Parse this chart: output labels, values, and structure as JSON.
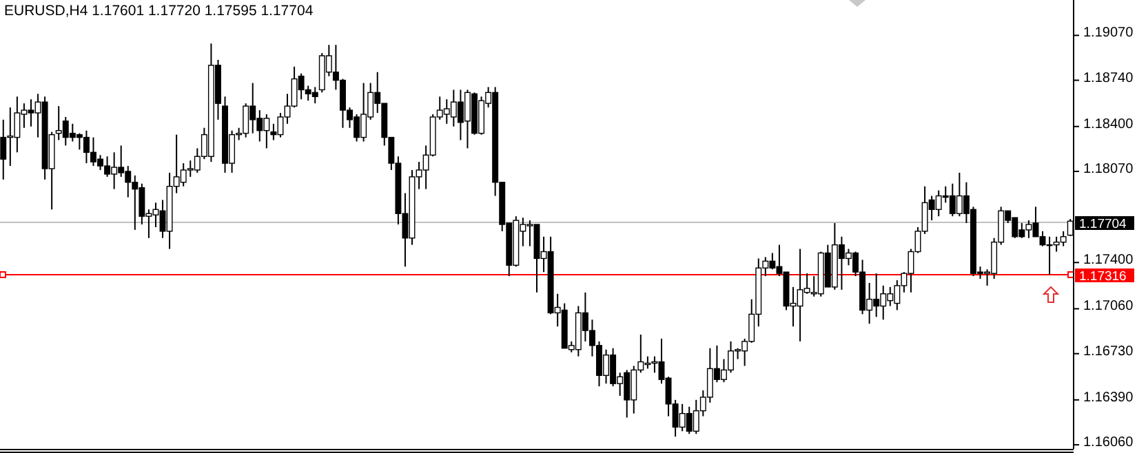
{
  "chart_data": {
    "type": "candlestick",
    "title": "EURUSD,H4  1.17601 1.17720 1.17595 1.17704",
    "categories": [
      null,
      null,
      null,
      null,
      null,
      null,
      null,
      null,
      null,
      null,
      null,
      null,
      null,
      null,
      null,
      null,
      null,
      null,
      null,
      null,
      null,
      null,
      null,
      null,
      null,
      null,
      null,
      null,
      null,
      null,
      null,
      null,
      null,
      null,
      null,
      null,
      null,
      null,
      null,
      null,
      null,
      null,
      null,
      null,
      null,
      null,
      null,
      null,
      null,
      null,
      null,
      null,
      null,
      null,
      null,
      null,
      null,
      null,
      null,
      null,
      null,
      null,
      null,
      null,
      null,
      null,
      null,
      null,
      null,
      null,
      null,
      null,
      null,
      null,
      null,
      null,
      null,
      null,
      null,
      null,
      null,
      null,
      null,
      null,
      null,
      null,
      null,
      null,
      null,
      null,
      null,
      null,
      null,
      null,
      null,
      null,
      null,
      null,
      null,
      null,
      null,
      null,
      null,
      null,
      null,
      null,
      null,
      null,
      null,
      null,
      null,
      null,
      null,
      null,
      null,
      null,
      null,
      null,
      null,
      null,
      null,
      null,
      null,
      null,
      null,
      null,
      null,
      null,
      null,
      null,
      null,
      null,
      null,
      null,
      null,
      null,
      null,
      null,
      null,
      null,
      null,
      null,
      null,
      null,
      null,
      null,
      null,
      null,
      null,
      null,
      null,
      null,
      null,
      null,
      null
    ],
    "ohlc": [
      [
        1.1832,
        1.1845,
        1.1801,
        1.1816
      ],
      [
        1.1832,
        1.1854,
        1.1811,
        1.1833
      ],
      [
        1.1832,
        1.1862,
        1.1821,
        1.185
      ],
      [
        1.1849,
        1.1857,
        1.1839,
        1.1852
      ],
      [
        1.1852,
        1.186,
        1.184,
        1.185
      ],
      [
        1.185,
        1.1864,
        1.1832,
        1.1858
      ],
      [
        1.1858,
        1.1862,
        1.1801,
        1.1809
      ],
      [
        1.1809,
        1.1836,
        1.1779,
        1.1834
      ],
      [
        1.1835,
        1.1855,
        1.183,
        1.1837
      ],
      [
        1.1844,
        1.1847,
        1.1826,
        1.1832
      ],
      [
        1.1835,
        1.1842,
        1.1829,
        1.1832
      ],
      [
        1.1834,
        1.1835,
        1.1823,
        1.1832
      ],
      [
        1.1832,
        1.1837,
        1.1813,
        1.1821
      ],
      [
        1.1821,
        1.1832,
        1.1811,
        1.1814
      ],
      [
        1.1816,
        1.1819,
        1.1808,
        1.1811
      ],
      [
        1.1811,
        1.1818,
        1.1803,
        1.1805
      ],
      [
        1.1805,
        1.1821,
        1.1794,
        1.181
      ],
      [
        1.181,
        1.1826,
        1.1803,
        1.1806
      ],
      [
        1.1807,
        1.1811,
        1.1788,
        1.1799
      ],
      [
        1.1799,
        1.1804,
        1.1764,
        1.1794
      ],
      [
        1.1795,
        1.1798,
        1.1768,
        1.1774
      ],
      [
        1.1774,
        1.1779,
        1.1758,
        1.1776
      ],
      [
        1.1775,
        1.1784,
        1.1766,
        1.1779
      ],
      [
        1.1778,
        1.1786,
        1.1758,
        1.1763
      ],
      [
        1.1763,
        1.1806,
        1.175,
        1.1796
      ],
      [
        1.1796,
        1.1834,
        1.1791,
        1.1803
      ],
      [
        1.1799,
        1.1813,
        1.1796,
        1.1808
      ],
      [
        1.1808,
        1.1815,
        1.1803,
        1.1809
      ],
      [
        1.1808,
        1.1824,
        1.1806,
        1.1818
      ],
      [
        1.1818,
        1.1839,
        1.1816,
        1.1834
      ],
      [
        1.1818,
        1.1901,
        1.1814,
        1.1885
      ],
      [
        1.1885,
        1.1889,
        1.1845,
        1.1857
      ],
      [
        1.1855,
        1.1862,
        1.1806,
        1.1813
      ],
      [
        1.1813,
        1.1837,
        1.1806,
        1.1834
      ],
      [
        1.1834,
        1.1839,
        1.183,
        1.1835
      ],
      [
        1.1835,
        1.1857,
        1.1832,
        1.1855
      ],
      [
        1.1855,
        1.1872,
        1.1835,
        1.1845
      ],
      [
        1.1846,
        1.1852,
        1.1829,
        1.1837
      ],
      [
        1.1837,
        1.1849,
        1.1824,
        1.1846
      ],
      [
        1.1836,
        1.1842,
        1.183,
        1.1834
      ],
      [
        1.1834,
        1.185,
        1.1832,
        1.1847
      ],
      [
        1.1847,
        1.1864,
        1.1842,
        1.1855
      ],
      [
        1.1855,
        1.1884,
        1.1854,
        1.1875
      ],
      [
        1.1877,
        1.1879,
        1.186,
        1.1867
      ],
      [
        1.1867,
        1.187,
        1.1859,
        1.1864
      ],
      [
        1.1865,
        1.1869,
        1.1857,
        1.1862
      ],
      [
        1.1867,
        1.1894,
        1.1865,
        1.1892
      ],
      [
        1.188,
        1.19,
        1.1877,
        1.1892
      ],
      [
        1.188,
        1.19,
        1.1867,
        1.1874
      ],
      [
        1.1874,
        1.1875,
        1.1839,
        1.1852
      ],
      [
        1.1852,
        1.1854,
        1.1839,
        1.1845
      ],
      [
        1.1847,
        1.1849,
        1.1829,
        1.1832
      ],
      [
        1.1832,
        1.1872,
        1.1829,
        1.1849
      ],
      [
        1.1847,
        1.1872,
        1.1845,
        1.1865
      ],
      [
        1.1865,
        1.188,
        1.185,
        1.1857
      ],
      [
        1.1857,
        1.1857,
        1.1826,
        1.1832
      ],
      [
        1.1832,
        1.1832,
        1.1808,
        1.1813
      ],
      [
        1.1813,
        1.1818,
        1.1768,
        1.1776
      ],
      [
        1.1776,
        1.1791,
        1.1737,
        1.1758
      ],
      [
        1.1758,
        1.1808,
        1.1753,
        1.1803
      ],
      [
        1.1803,
        1.1814,
        1.1794,
        1.1808
      ],
      [
        1.1808,
        1.1826,
        1.1794,
        1.1819
      ],
      [
        1.1819,
        1.1849,
        1.1818,
        1.1847
      ],
      [
        1.1847,
        1.1862,
        1.1845,
        1.1852
      ],
      [
        1.1849,
        1.186,
        1.1842,
        1.1853
      ],
      [
        1.1847,
        1.1867,
        1.184,
        1.1858
      ],
      [
        1.1858,
        1.1867,
        1.183,
        1.1843
      ],
      [
        1.1844,
        1.1867,
        1.1824,
        1.1865
      ],
      [
        1.1864,
        1.1865,
        1.1834,
        1.1835
      ],
      [
        1.1835,
        1.1862,
        1.1834,
        1.1859
      ],
      [
        1.1857,
        1.1869,
        1.1854,
        1.1865
      ],
      [
        1.1865,
        1.1869,
        1.1789,
        1.1799
      ],
      [
        1.1799,
        1.1799,
        1.1763,
        1.1768
      ],
      [
        1.1769,
        1.1769,
        1.173,
        1.1738
      ],
      [
        1.1738,
        1.1774,
        1.1737,
        1.1771
      ],
      [
        1.1763,
        1.1773,
        1.1752,
        1.1768
      ],
      [
        1.1767,
        1.1771,
        1.1752,
        1.1768
      ],
      [
        1.1768,
        1.1768,
        1.1718,
        1.1743
      ],
      [
        1.1743,
        1.1759,
        1.1733,
        1.1748
      ],
      [
        1.1748,
        1.1759,
        1.1702,
        1.1703
      ],
      [
        1.1703,
        1.1717,
        1.1693,
        1.1707
      ],
      [
        1.1705,
        1.171,
        1.1677,
        1.1677
      ],
      [
        1.1676,
        1.1682,
        1.1674,
        1.1679
      ],
      [
        1.1676,
        1.1708,
        1.1671,
        1.1703
      ],
      [
        1.1703,
        1.1718,
        1.1682,
        1.169
      ],
      [
        1.169,
        1.1698,
        1.1671,
        1.1679
      ],
      [
        1.1679,
        1.1682,
        1.1649,
        1.1657
      ],
      [
        1.1657,
        1.1676,
        1.1651,
        1.1672
      ],
      [
        1.1672,
        1.1677,
        1.1649,
        1.1651
      ],
      [
        1.1651,
        1.1659,
        1.1642,
        1.1656
      ],
      [
        1.1659,
        1.1661,
        1.1626,
        1.1639
      ],
      [
        1.1639,
        1.1664,
        1.1629,
        1.1661
      ],
      [
        1.1661,
        1.1687,
        1.1659,
        1.1667
      ],
      [
        1.1665,
        1.1671,
        1.1662,
        1.1666
      ],
      [
        1.1666,
        1.1671,
        1.1659,
        1.1667
      ],
      [
        1.1667,
        1.1684,
        1.1651,
        1.1654
      ],
      [
        1.1655,
        1.1656,
        1.1627,
        1.1636
      ],
      [
        1.1636,
        1.1639,
        1.1612,
        1.1619
      ],
      [
        1.1619,
        1.1636,
        1.1616,
        1.1629
      ],
      [
        1.1629,
        1.1634,
        1.1614,
        1.1616
      ],
      [
        1.1616,
        1.1639,
        1.1614,
        1.1631
      ],
      [
        1.1631,
        1.1646,
        1.1627,
        1.1641
      ],
      [
        1.1641,
        1.1677,
        1.1637,
        1.1662
      ],
      [
        1.1662,
        1.1679,
        1.1652,
        1.1654
      ],
      [
        1.1654,
        1.1669,
        1.1652,
        1.1661
      ],
      [
        1.1661,
        1.1682,
        1.1659,
        1.1675
      ],
      [
        1.1675,
        1.1677,
        1.1669,
        1.1676
      ],
      [
        1.1675,
        1.1684,
        1.1664,
        1.1682
      ],
      [
        1.1682,
        1.1713,
        1.1681,
        1.1702
      ],
      [
        1.1702,
        1.1743,
        1.1693,
        1.1736
      ],
      [
        1.1736,
        1.1744,
        1.173,
        1.1741
      ],
      [
        1.1741,
        1.1747,
        1.1735,
        1.1736
      ],
      [
        1.1737,
        1.1753,
        1.173,
        1.1732
      ],
      [
        1.1733,
        1.1733,
        1.1705,
        1.1708
      ],
      [
        1.1708,
        1.1722,
        1.1693,
        1.171
      ],
      [
        1.1708,
        1.175,
        1.1682,
        1.172
      ],
      [
        1.1718,
        1.1732,
        1.1717,
        1.1721
      ],
      [
        1.1717,
        1.173,
        1.1715,
        1.1718
      ],
      [
        1.1717,
        1.1748,
        1.1715,
        1.1747
      ],
      [
        1.1747,
        1.1753,
        1.1722,
        1.1722
      ],
      [
        1.1722,
        1.1769,
        1.172,
        1.1753
      ],
      [
        1.1753,
        1.1759,
        1.172,
        1.1743
      ],
      [
        1.1743,
        1.175,
        1.1738,
        1.1747
      ],
      [
        1.1747,
        1.1748,
        1.173,
        1.1733
      ],
      [
        1.1733,
        1.1742,
        1.1702,
        1.1705
      ],
      [
        1.1705,
        1.1725,
        1.1695,
        1.1713
      ],
      [
        1.1713,
        1.1732,
        1.17,
        1.1708
      ],
      [
        1.1708,
        1.1723,
        1.1698,
        1.1717
      ],
      [
        1.1712,
        1.1722,
        1.1708,
        1.1717
      ],
      [
        1.171,
        1.1727,
        1.1705,
        1.1723
      ],
      [
        1.1723,
        1.1733,
        1.1718,
        1.1732
      ],
      [
        1.1732,
        1.175,
        1.1718,
        1.1748
      ],
      [
        1.1748,
        1.1766,
        1.1747,
        1.1763
      ],
      [
        1.1763,
        1.1796,
        1.1761,
        1.1784
      ],
      [
        1.1786,
        1.1789,
        1.1771,
        1.1779
      ],
      [
        1.1779,
        1.1793,
        1.1774,
        1.1789
      ],
      [
        1.1789,
        1.1796,
        1.1784,
        1.1788
      ],
      [
        1.1789,
        1.1798,
        1.1774,
        1.1776
      ],
      [
        1.1776,
        1.1806,
        1.1774,
        1.1789
      ],
      [
        1.1789,
        1.1799,
        1.1769,
        1.1776
      ],
      [
        1.1779,
        1.1781,
        1.173,
        1.1732
      ],
      [
        1.1733,
        1.1737,
        1.1728,
        1.1732
      ],
      [
        1.1732,
        1.1735,
        1.1723,
        1.1733
      ],
      [
        1.1732,
        1.1758,
        1.1728,
        1.1755
      ],
      [
        1.1755,
        1.1781,
        1.1753,
        1.1778
      ],
      [
        1.1778,
        1.1778,
        1.1769,
        1.1771
      ],
      [
        1.1773,
        1.1773,
        1.1758,
        1.1759
      ],
      [
        1.1764,
        1.1769,
        1.1758,
        1.1759
      ],
      [
        1.1764,
        1.1771,
        1.1758,
        1.1768
      ],
      [
        1.1769,
        1.1781,
        1.1759,
        1.1759
      ],
      [
        1.1759,
        1.1763,
        1.1752,
        1.1753
      ],
      [
        1.1753,
        1.1759,
        1.1731,
        1.1753
      ],
      [
        1.1753,
        1.1759,
        1.1748,
        1.1755
      ],
      [
        1.1755,
        1.1763,
        1.1752,
        1.1759
      ],
      [
        1.17601,
        1.1772,
        1.17595,
        1.17704
      ]
    ],
    "ylim": [
      1.1603,
      1.1933
    ],
    "yticks": [
      {
        "value": 1.1907,
        "label": "1.19070"
      },
      {
        "value": 1.1874,
        "label": "1.18740"
      },
      {
        "value": 1.184,
        "label": "1.18400"
      },
      {
        "value": 1.1807,
        "label": "1.18070"
      },
      {
        "value": 1.174,
        "label": "1.17400"
      },
      {
        "value": 1.1706,
        "label": "1.17060"
      },
      {
        "value": 1.1673,
        "label": "1.16730"
      },
      {
        "value": 1.1639,
        "label": "1.16390"
      },
      {
        "value": 1.1606,
        "label": "1.16060"
      }
    ],
    "ref_lines": [
      {
        "axis": "y",
        "value": 1.17704,
        "label": "1.17704",
        "color": "#c0c0c0"
      },
      {
        "axis": "y",
        "value": 1.17316,
        "label": "1.17316",
        "color": "#ff0000"
      }
    ],
    "tick_labels": "y",
    "grid": false
  }
}
